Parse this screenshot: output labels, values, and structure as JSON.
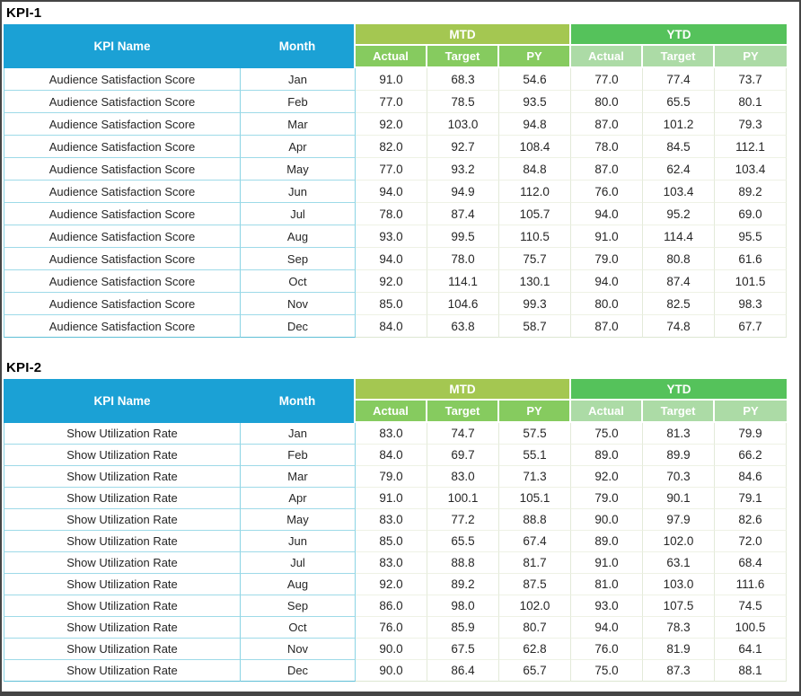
{
  "colors": {
    "frame_border": "#454545",
    "header_cyan": "#1BA1D5",
    "mtd_band_green": "#A4C751",
    "mtd_sub_green": "#86CB5F",
    "ytd_band_green": "#55C25B",
    "ytd_sub_green": "#ACDBA6",
    "left_cell_border": "#8BD4E4",
    "data_cell_border": "#E3EAD9",
    "header_text": "#ffffff",
    "body_text": "#262626"
  },
  "tables": [
    {
      "title": "KPI-1",
      "kpi_name": "Audience Satisfaction Score",
      "headers": {
        "kpi_name": "KPI Name",
        "month": "Month",
        "mtd": "MTD",
        "ytd": "YTD",
        "sub": [
          "Actual",
          "Target",
          "PY",
          "Actual",
          "Target",
          "PY"
        ]
      },
      "rows": [
        {
          "month": "Jan",
          "mtd": [
            "91.0",
            "68.3",
            "54.6"
          ],
          "ytd": [
            "77.0",
            "77.4",
            "73.7"
          ]
        },
        {
          "month": "Feb",
          "mtd": [
            "77.0",
            "78.5",
            "93.5"
          ],
          "ytd": [
            "80.0",
            "65.5",
            "80.1"
          ]
        },
        {
          "month": "Mar",
          "mtd": [
            "92.0",
            "103.0",
            "94.8"
          ],
          "ytd": [
            "87.0",
            "101.2",
            "79.3"
          ]
        },
        {
          "month": "Apr",
          "mtd": [
            "82.0",
            "92.7",
            "108.4"
          ],
          "ytd": [
            "78.0",
            "84.5",
            "112.1"
          ]
        },
        {
          "month": "May",
          "mtd": [
            "77.0",
            "93.2",
            "84.8"
          ],
          "ytd": [
            "87.0",
            "62.4",
            "103.4"
          ]
        },
        {
          "month": "Jun",
          "mtd": [
            "94.0",
            "94.9",
            "112.0"
          ],
          "ytd": [
            "76.0",
            "103.4",
            "89.2"
          ]
        },
        {
          "month": "Jul",
          "mtd": [
            "78.0",
            "87.4",
            "105.7"
          ],
          "ytd": [
            "94.0",
            "95.2",
            "69.0"
          ]
        },
        {
          "month": "Aug",
          "mtd": [
            "93.0",
            "99.5",
            "110.5"
          ],
          "ytd": [
            "91.0",
            "114.4",
            "95.5"
          ]
        },
        {
          "month": "Sep",
          "mtd": [
            "94.0",
            "78.0",
            "75.7"
          ],
          "ytd": [
            "79.0",
            "80.8",
            "61.6"
          ]
        },
        {
          "month": "Oct",
          "mtd": [
            "92.0",
            "114.1",
            "130.1"
          ],
          "ytd": [
            "94.0",
            "87.4",
            "101.5"
          ]
        },
        {
          "month": "Nov",
          "mtd": [
            "85.0",
            "104.6",
            "99.3"
          ],
          "ytd": [
            "80.0",
            "82.5",
            "98.3"
          ]
        },
        {
          "month": "Dec",
          "mtd": [
            "84.0",
            "63.8",
            "58.7"
          ],
          "ytd": [
            "87.0",
            "74.8",
            "67.7"
          ]
        }
      ]
    },
    {
      "title": "KPI-2",
      "kpi_name": "Show Utilization Rate",
      "headers": {
        "kpi_name": "KPI Name",
        "month": "Month",
        "mtd": "MTD",
        "ytd": "YTD",
        "sub": [
          "Actual",
          "Target",
          "PY",
          "Actual",
          "Target",
          "PY"
        ]
      },
      "rows": [
        {
          "month": "Jan",
          "mtd": [
            "83.0",
            "74.7",
            "57.5"
          ],
          "ytd": [
            "75.0",
            "81.3",
            "79.9"
          ]
        },
        {
          "month": "Feb",
          "mtd": [
            "84.0",
            "69.7",
            "55.1"
          ],
          "ytd": [
            "89.0",
            "89.9",
            "66.2"
          ]
        },
        {
          "month": "Mar",
          "mtd": [
            "79.0",
            "83.0",
            "71.3"
          ],
          "ytd": [
            "92.0",
            "70.3",
            "84.6"
          ]
        },
        {
          "month": "Apr",
          "mtd": [
            "91.0",
            "100.1",
            "105.1"
          ],
          "ytd": [
            "79.0",
            "90.1",
            "79.1"
          ]
        },
        {
          "month": "May",
          "mtd": [
            "83.0",
            "77.2",
            "88.8"
          ],
          "ytd": [
            "90.0",
            "97.9",
            "82.6"
          ]
        },
        {
          "month": "Jun",
          "mtd": [
            "85.0",
            "65.5",
            "67.4"
          ],
          "ytd": [
            "89.0",
            "102.0",
            "72.0"
          ]
        },
        {
          "month": "Jul",
          "mtd": [
            "83.0",
            "88.8",
            "81.7"
          ],
          "ytd": [
            "91.0",
            "63.1",
            "68.4"
          ]
        },
        {
          "month": "Aug",
          "mtd": [
            "92.0",
            "89.2",
            "87.5"
          ],
          "ytd": [
            "81.0",
            "103.0",
            "111.6"
          ]
        },
        {
          "month": "Sep",
          "mtd": [
            "86.0",
            "98.0",
            "102.0"
          ],
          "ytd": [
            "93.0",
            "107.5",
            "74.5"
          ]
        },
        {
          "month": "Oct",
          "mtd": [
            "76.0",
            "85.9",
            "80.7"
          ],
          "ytd": [
            "94.0",
            "78.3",
            "100.5"
          ]
        },
        {
          "month": "Nov",
          "mtd": [
            "90.0",
            "67.5",
            "62.8"
          ],
          "ytd": [
            "76.0",
            "81.9",
            "64.1"
          ]
        },
        {
          "month": "Dec",
          "mtd": [
            "90.0",
            "86.4",
            "65.7"
          ],
          "ytd": [
            "75.0",
            "87.3",
            "88.1"
          ]
        }
      ]
    }
  ]
}
